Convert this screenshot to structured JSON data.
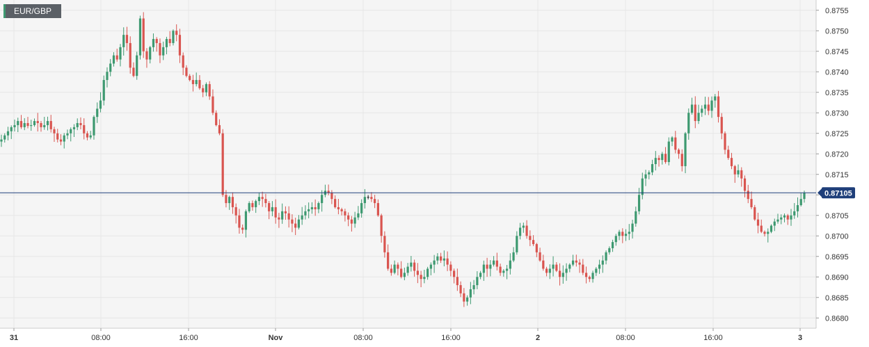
{
  "symbol": "EUR/GBP",
  "colors": {
    "up": "#3d9970",
    "down": "#d9544f",
    "neutral": "#222222",
    "grid": "#e6e6e6",
    "plot_bg": "#f5f5f5",
    "price_line": "#1f3f7a"
  },
  "chart_data": {
    "type": "candlestick",
    "title": "",
    "xlabel": "",
    "ylabel": "",
    "ylim": [
      0.8678,
      0.8757
    ],
    "grid": true,
    "current_price": 0.87105,
    "current_price_label": "0.87105",
    "y_ticks": [
      "0.8755",
      "0.8750",
      "0.8745",
      "0.8740",
      "0.8735",
      "0.8730",
      "0.8725",
      "0.8720",
      "0.8715",
      "0.8710",
      "0.8705",
      "0.8700",
      "0.8695",
      "0.8690",
      "0.8685",
      "0.8680"
    ],
    "x_ticks": [
      {
        "label": "31",
        "bold": true
      },
      {
        "label": "08:00",
        "bold": false
      },
      {
        "label": "16:00",
        "bold": false
      },
      {
        "label": "Nov",
        "bold": true
      },
      {
        "label": "08:00",
        "bold": false
      },
      {
        "label": "16:00",
        "bold": false
      },
      {
        "label": "2",
        "bold": true
      },
      {
        "label": "08:00",
        "bold": false
      },
      {
        "label": "16:00",
        "bold": false
      },
      {
        "label": "3",
        "bold": true
      }
    ],
    "series": [
      {
        "values": [
          0.87235,
          0.87245,
          0.87255,
          0.87265,
          0.8727,
          0.8728,
          0.87265,
          0.87275,
          0.87268,
          0.8727,
          0.8728,
          0.87275,
          0.87265,
          0.8727,
          0.8728,
          0.8726,
          0.8725,
          0.87235,
          0.8723,
          0.87245,
          0.8725,
          0.8726,
          0.87265,
          0.87275,
          0.8727,
          0.8725,
          0.8724,
          0.87245,
          0.8729,
          0.8731,
          0.8733,
          0.8738,
          0.874,
          0.8742,
          0.8744,
          0.8743,
          0.8746,
          0.8749,
          0.8747,
          0.8741,
          0.8739,
          0.8744,
          0.8753,
          0.8745,
          0.8743,
          0.8746,
          0.8748,
          0.8747,
          0.8744,
          0.8746,
          0.8748,
          0.8747,
          0.875,
          0.8749,
          0.8744,
          0.8741,
          0.8739,
          0.8738,
          0.8737,
          0.8738,
          0.8736,
          0.8735,
          0.8737,
          0.8734,
          0.873,
          0.8727,
          0.8725,
          0.871,
          0.8708,
          0.87095,
          0.8707,
          0.8705,
          0.8702,
          0.87015,
          0.8706,
          0.8708,
          0.8707,
          0.87085,
          0.87095,
          0.8709,
          0.8708,
          0.8706,
          0.8707,
          0.87045,
          0.8704,
          0.8706,
          0.87055,
          0.8704,
          0.8703,
          0.8702,
          0.8704,
          0.8705,
          0.8706,
          0.87065,
          0.8707,
          0.87065,
          0.8708,
          0.871,
          0.8711,
          0.87105,
          0.8709,
          0.8707,
          0.87065,
          0.8706,
          0.8705,
          0.8704,
          0.8703,
          0.87045,
          0.87055,
          0.8708,
          0.87095,
          0.87095,
          0.8709,
          0.8708,
          0.8705,
          0.87,
          0.8696,
          0.8692,
          0.8691,
          0.8693,
          0.8692,
          0.869,
          0.8691,
          0.86925,
          0.86935,
          0.86915,
          0.86905,
          0.86895,
          0.869,
          0.8692,
          0.8693,
          0.8694,
          0.8695,
          0.8694,
          0.86945,
          0.8693,
          0.86915,
          0.869,
          0.8688,
          0.8686,
          0.8684,
          0.8685,
          0.8687,
          0.8688,
          0.869,
          0.8691,
          0.8693,
          0.8692,
          0.8693,
          0.8694,
          0.86925,
          0.8691,
          0.86915,
          0.8692,
          0.8694,
          0.8696,
          0.87,
          0.8702,
          0.87025,
          0.87,
          0.8699,
          0.8698,
          0.8696,
          0.8694,
          0.8692,
          0.8691,
          0.8692,
          0.8693,
          0.86915,
          0.869,
          0.8691,
          0.8692,
          0.8693,
          0.8694,
          0.86935,
          0.8693,
          0.8691,
          0.869,
          0.86895,
          0.8691,
          0.8692,
          0.8693,
          0.8694,
          0.8696,
          0.8697,
          0.86985,
          0.87,
          0.8701,
          0.87,
          0.87005,
          0.8701,
          0.8703,
          0.8706,
          0.871,
          0.8714,
          0.8715,
          0.87155,
          0.87175,
          0.8719,
          0.87185,
          0.872,
          0.8718,
          0.8723,
          0.8724,
          0.8721,
          0.872,
          0.8717,
          0.8725,
          0.873,
          0.8732,
          0.8728,
          0.873,
          0.8731,
          0.8732,
          0.87305,
          0.8733,
          0.8734,
          0.8729,
          0.8725,
          0.8721,
          0.8719,
          0.8717,
          0.8715,
          0.8716,
          0.8714,
          0.8711,
          0.8709,
          0.8707,
          0.8704,
          0.87025,
          0.8701,
          0.87005,
          0.8701,
          0.87025,
          0.87035,
          0.8704,
          0.87045,
          0.8705,
          0.8704,
          0.8705,
          0.8706,
          0.87075,
          0.8709,
          0.87105
        ]
      }
    ]
  }
}
